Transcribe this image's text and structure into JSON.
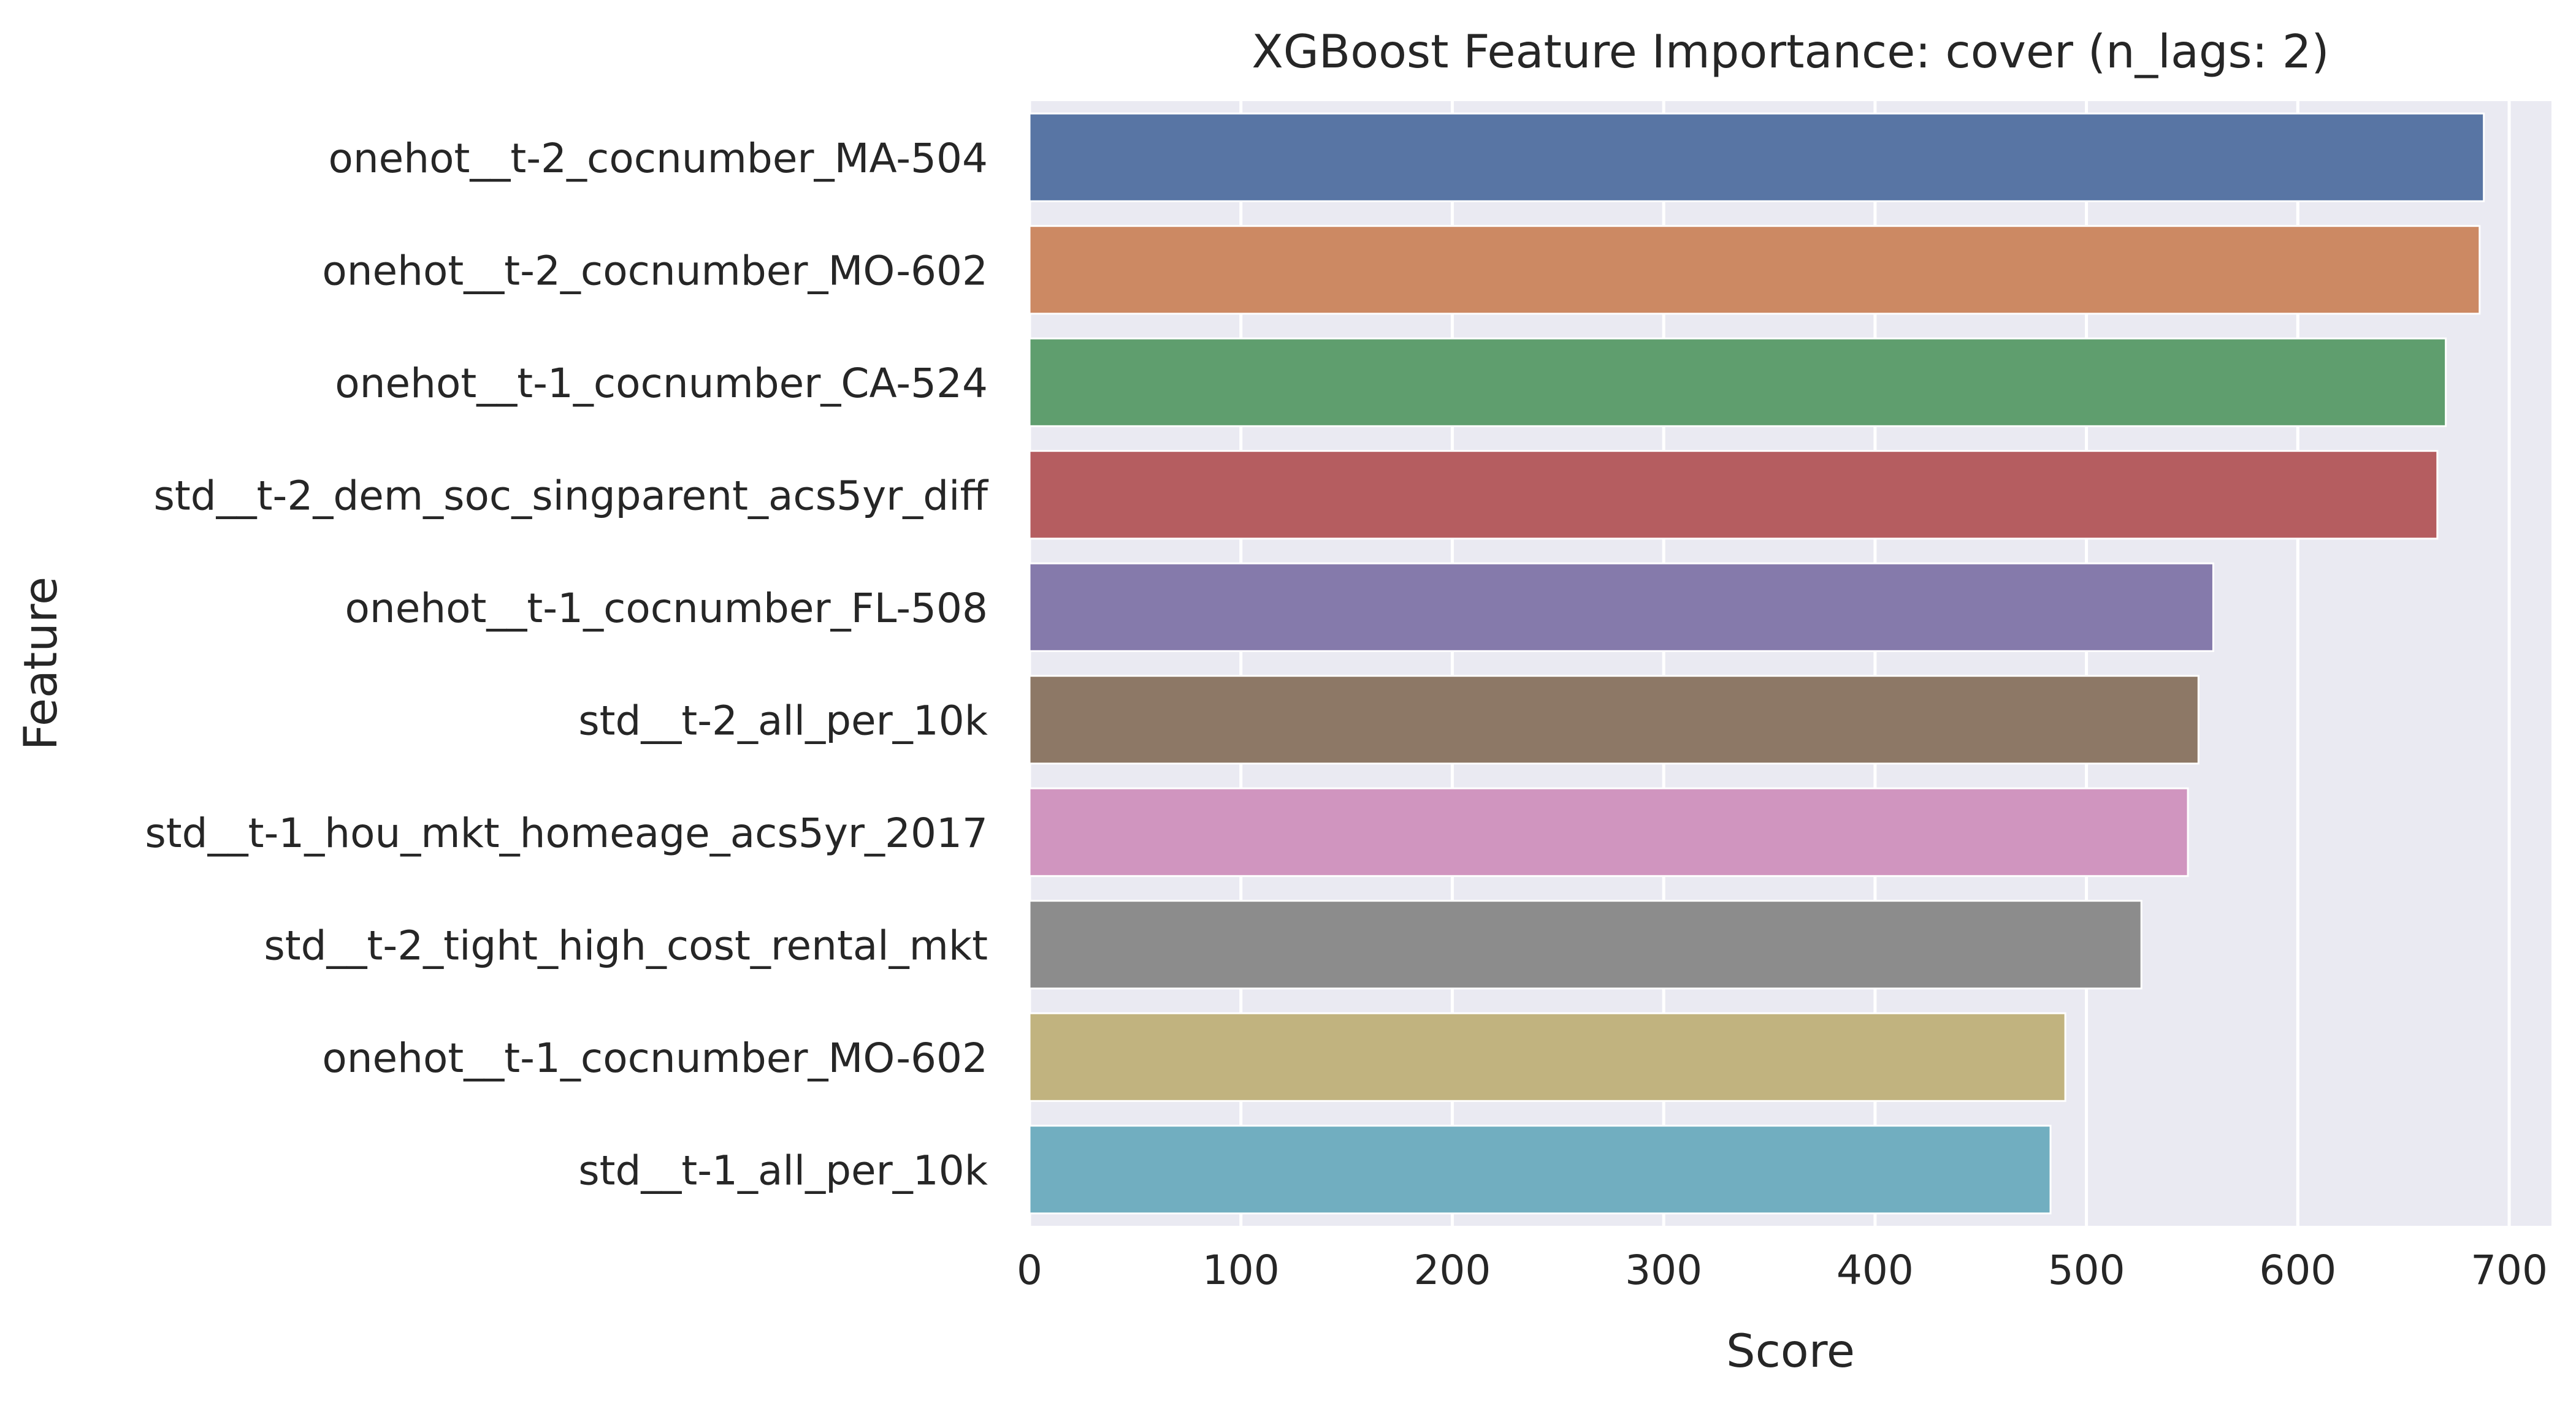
{
  "chart_data": {
    "type": "bar",
    "orientation": "horizontal",
    "title": "XGBoost Feature Importance: cover (n_lags: 2)",
    "xlabel": "Score",
    "ylabel": "Feature",
    "xlim": [
      0,
      720
    ],
    "xticks": [
      0,
      100,
      200,
      300,
      400,
      500,
      600,
      700
    ],
    "grid": true,
    "background": "#eaeaf2",
    "gridColor": "#ffffff",
    "categories": [
      "onehot__t-2_cocnumber_MA-504",
      "onehot__t-2_cocnumber_MO-602",
      "onehot__t-1_cocnumber_CA-524",
      "std__t-2_dem_soc_singparent_acs5yr_diff",
      "onehot__t-1_cocnumber_FL-508",
      "std__t-2_all_per_10k",
      "std__t-1_hou_mkt_homeage_acs5yr_2017",
      "std__t-2_tight_high_cost_rental_mkt",
      "onehot__t-1_cocnumber_MO-602",
      "std__t-1_all_per_10k"
    ],
    "values": [
      688,
      686,
      670,
      666,
      560,
      553,
      548,
      526,
      490,
      483
    ],
    "colors": [
      "#5875a4",
      "#cc8963",
      "#5f9e6e",
      "#b55d60",
      "#857aab",
      "#8d7866",
      "#d095bf",
      "#8c8c8c",
      "#c1b37f",
      "#71aec0"
    ]
  }
}
